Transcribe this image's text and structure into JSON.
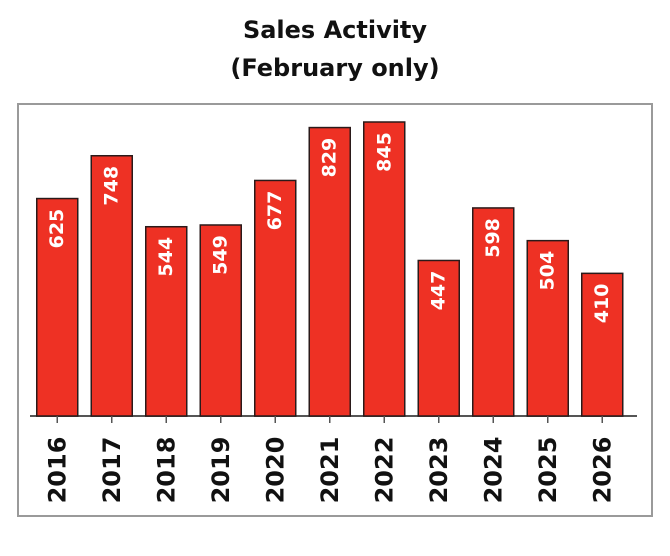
{
  "chart_data": {
    "type": "bar",
    "title": "Sales Activity",
    "subtitle": "(February only)",
    "categories": [
      "2016",
      "2017",
      "2018",
      "2019",
      "2020",
      "2021",
      "2022",
      "2023",
      "2024",
      "2025",
      "2026"
    ],
    "values": [
      625,
      748,
      544,
      549,
      677,
      829,
      845,
      447,
      598,
      504,
      410
    ],
    "xlabel": "",
    "ylabel": "",
    "ylim": [
      0,
      845
    ],
    "grid": false,
    "legend": "none",
    "colors": {
      "bar": "#ee3124",
      "bar_stroke": "#2a1a1a",
      "frame": "#9a9a9a",
      "axis": "#555555"
    }
  }
}
